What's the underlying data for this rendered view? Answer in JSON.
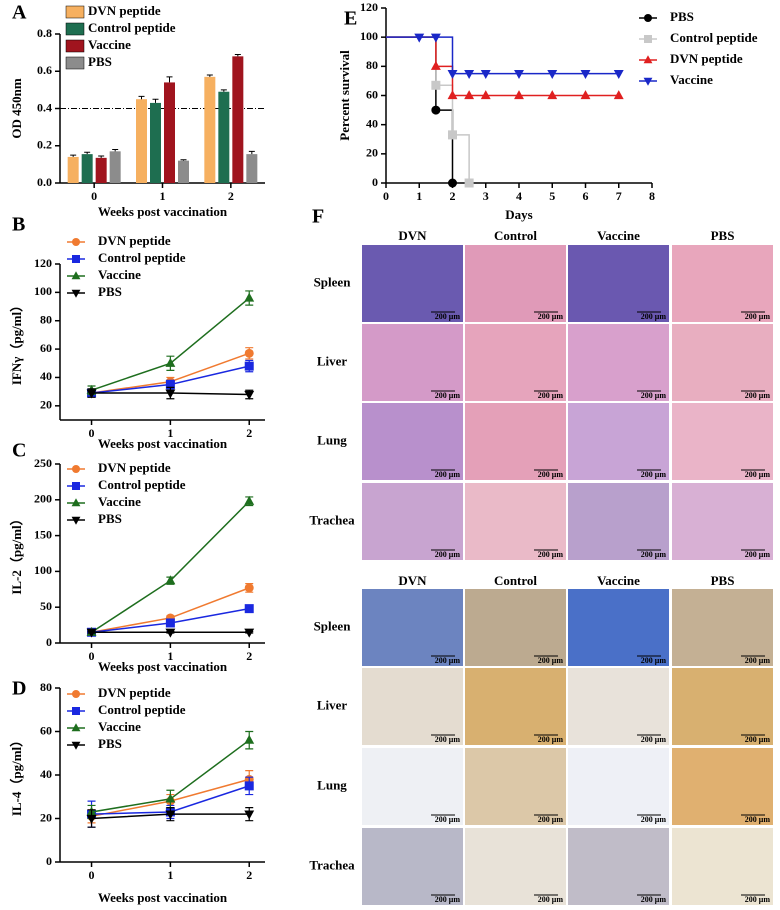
{
  "chart_data": [
    {
      "type": "bar",
      "panel_label": "A",
      "ylabel": "OD 450nm",
      "xlabel": "Weeks post vaccination",
      "categories": [
        "0",
        "1",
        "2"
      ],
      "ylim": [
        0,
        0.8
      ],
      "yticks": [
        {
          "value": 0,
          "label": "0.0"
        },
        0.2,
        0.4,
        0.6,
        0.8
      ],
      "reference_line": 0.4,
      "series": [
        {
          "name": "DVN peptide",
          "color": "#f6b060",
          "values": [
            0.14,
            0.45,
            0.57
          ],
          "errors": [
            0.01,
            0.015,
            0.01
          ]
        },
        {
          "name": "Control peptide",
          "color": "#1e6e50",
          "values": [
            0.155,
            0.43,
            0.49
          ],
          "errors": [
            0.01,
            0.02,
            0.01
          ]
        },
        {
          "name": "Vaccine",
          "color": "#a0141e",
          "values": [
            0.135,
            0.54,
            0.68
          ],
          "errors": [
            0.01,
            0.03,
            0.01
          ]
        },
        {
          "name": "PBS",
          "color": "#8c8c8c",
          "values": [
            0.17,
            0.12,
            0.155
          ],
          "errors": [
            0.01,
            0.005,
            0.015
          ]
        }
      ]
    },
    {
      "type": "line",
      "panel_label": "B",
      "ylabel": "IFNγ（pg/ml）",
      "xlabel": "Weeks post vaccination",
      "x": [
        0,
        1,
        2
      ],
      "xlim": [
        -0.4,
        2.2
      ],
      "xticks": [
        0,
        1,
        2
      ],
      "ylim": [
        10,
        120
      ],
      "yticks": [
        20,
        40,
        60,
        80,
        100,
        120
      ],
      "series": [
        {
          "name": "DVN peptide",
          "color": "#f07a30",
          "marker": "circle",
          "values": [
            29,
            37,
            57
          ],
          "errors": [
            2,
            3,
            4
          ]
        },
        {
          "name": "Control peptide",
          "color": "#1a28e0",
          "marker": "square",
          "values": [
            29,
            35,
            48
          ],
          "errors": [
            2,
            3,
            4
          ]
        },
        {
          "name": "Vaccine",
          "color": "#1e6e1e",
          "marker": "triangle",
          "values": [
            31,
            50,
            96
          ],
          "errors": [
            3,
            5,
            5
          ]
        },
        {
          "name": "PBS",
          "color": "#000000",
          "marker": "triangle-down",
          "values": [
            29,
            29,
            28
          ],
          "errors": [
            3,
            4,
            3
          ]
        }
      ]
    },
    {
      "type": "line",
      "panel_label": "C",
      "ylabel": "IL-2（pg/ml）",
      "xlabel": "Weeks post vaccination",
      "x": [
        0,
        1,
        2
      ],
      "xlim": [
        -0.4,
        2.2
      ],
      "xticks": [
        0,
        1,
        2
      ],
      "ylim": [
        0,
        250
      ],
      "yticks": [
        0,
        50,
        100,
        150,
        200,
        250
      ],
      "series": [
        {
          "name": "DVN peptide",
          "color": "#f07a30",
          "marker": "circle",
          "values": [
            15,
            35,
            77
          ],
          "errors": [
            2,
            3,
            6
          ]
        },
        {
          "name": "Control peptide",
          "color": "#1a28e0",
          "marker": "square",
          "values": [
            15,
            28,
            48
          ],
          "errors": [
            2,
            3,
            5
          ]
        },
        {
          "name": "Vaccine",
          "color": "#1e6e1e",
          "marker": "triangle",
          "values": [
            15,
            87,
            198
          ],
          "errors": [
            2,
            5,
            6
          ]
        },
        {
          "name": "PBS",
          "color": "#000000",
          "marker": "triangle-down",
          "values": [
            15,
            15,
            15
          ],
          "errors": [
            1,
            1,
            1
          ]
        }
      ]
    },
    {
      "type": "line",
      "panel_label": "D",
      "ylabel": "IL-4（pg/ml）",
      "xlabel": "Weeks post vaccination",
      "x": [
        0,
        1,
        2
      ],
      "xlim": [
        -0.4,
        2.2
      ],
      "xticks": [
        0,
        1,
        2
      ],
      "ylim": [
        0,
        80
      ],
      "yticks": [
        0,
        20,
        40,
        60,
        80
      ],
      "series": [
        {
          "name": "DVN peptide",
          "color": "#f07a30",
          "marker": "circle",
          "values": [
            21,
            28,
            38
          ],
          "errors": [
            3,
            3,
            4
          ]
        },
        {
          "name": "Control peptide",
          "color": "#1a28e0",
          "marker": "square",
          "values": [
            22,
            23,
            35
          ],
          "errors": [
            6,
            3,
            4
          ]
        },
        {
          "name": "Vaccine",
          "color": "#1e6e1e",
          "marker": "triangle",
          "values": [
            23,
            29,
            56
          ],
          "errors": [
            3,
            4,
            4
          ]
        },
        {
          "name": "PBS",
          "color": "#000000",
          "marker": "triangle-down",
          "values": [
            20,
            22,
            22
          ],
          "errors": [
            4,
            3,
            3
          ]
        }
      ]
    },
    {
      "type": "step",
      "panel_label": "E",
      "ylabel": "Percent survival",
      "xlabel": "Days",
      "xlim": [
        0,
        8
      ],
      "xticks": [
        0,
        1,
        2,
        3,
        4,
        5,
        6,
        7,
        8
      ],
      "ylim": [
        0,
        120
      ],
      "yticks": [
        0,
        20,
        40,
        60,
        80,
        100,
        120
      ],
      "series": [
        {
          "name": "PBS",
          "color": "#000000",
          "marker": "circle",
          "x": [
            1.5,
            2
          ],
          "values": [
            50,
            0
          ]
        },
        {
          "name": "Control peptide",
          "color": "#c8c8c8",
          "marker": "square",
          "x": [
            1.5,
            2,
            2.5
          ],
          "values": [
            67,
            33,
            0
          ]
        },
        {
          "name": "DVN peptide",
          "color": "#e02020",
          "marker": "triangle",
          "x": [
            1.5,
            2,
            2.5,
            3,
            4,
            5,
            6,
            7
          ],
          "values": [
            80,
            60,
            60,
            60,
            60,
            60,
            60,
            60
          ]
        },
        {
          "name": "Vaccine",
          "color": "#1a28c8",
          "marker": "triangle-down",
          "x": [
            1,
            1.5,
            2,
            2.5,
            3,
            4,
            5,
            6,
            7
          ],
          "values": [
            100,
            100,
            75,
            75,
            75,
            75,
            75,
            75,
            75
          ]
        }
      ]
    }
  ],
  "panel_f": {
    "label": "F",
    "scale_bar": "200 μm",
    "sections": [
      {
        "columns": [
          "DVN",
          "Control",
          "Vaccine",
          "PBS"
        ],
        "rows": [
          "Spleen",
          "Liver",
          "Lung",
          "Trachea"
        ]
      },
      {
        "columns": [
          "DVN",
          "Control",
          "Vaccine",
          "PBS"
        ],
        "rows": [
          "Spleen",
          "Liver",
          "Lung",
          "Trachea"
        ]
      }
    ]
  }
}
